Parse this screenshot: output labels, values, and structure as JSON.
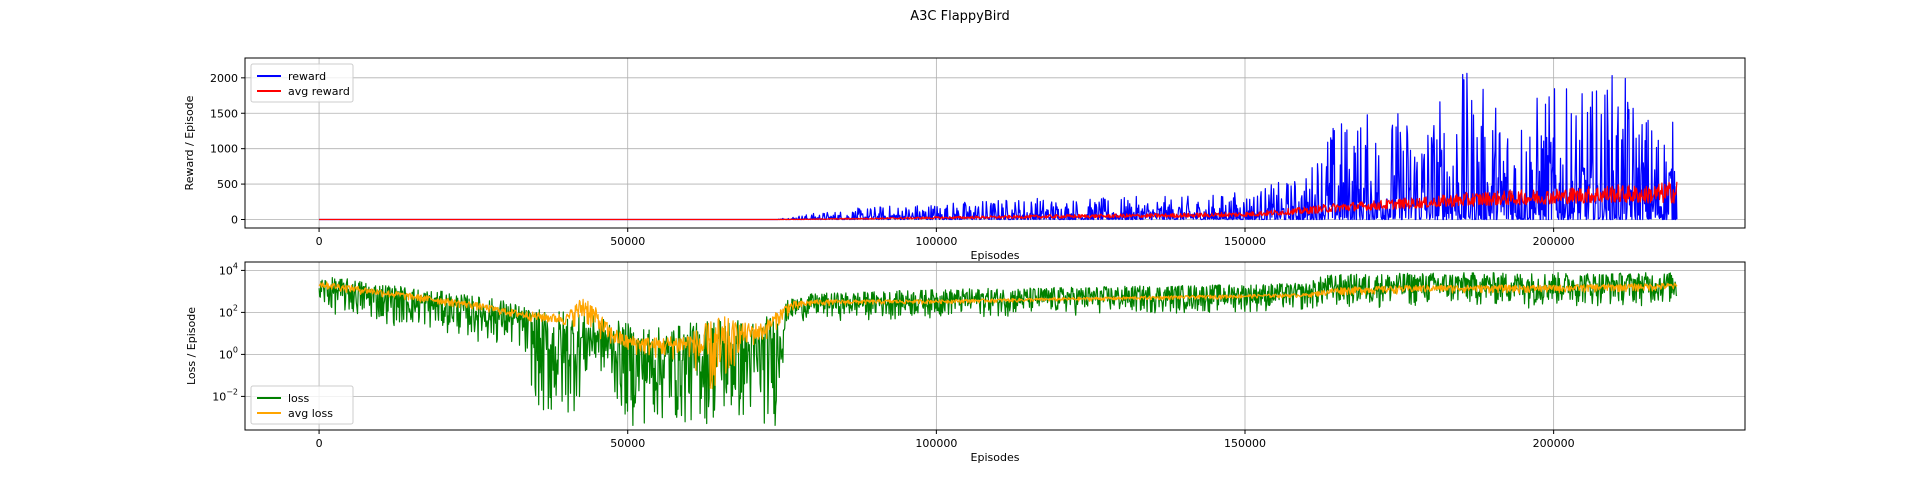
{
  "figure": {
    "title": "A3C FlappyBird"
  },
  "chart_data": [
    {
      "type": "line",
      "xlabel": "Episodes",
      "ylabel": "Reward / Episode",
      "xlim": [
        -12000,
        231000
      ],
      "ylim": [
        -120,
        2280
      ],
      "xticks": [
        0,
        50000,
        100000,
        150000,
        200000
      ],
      "yticks": [
        0,
        500,
        1000,
        1500,
        2000
      ],
      "yscale": "linear",
      "grid": true,
      "legend_location": "upper left",
      "series": [
        {
          "name": "reward",
          "color": "#0000ff",
          "x": [
            0,
            74000,
            76000,
            80000,
            85000,
            90000,
            95000,
            100000,
            105000,
            110000,
            115000,
            120000,
            125000,
            130000,
            135000,
            140000,
            145000,
            150000,
            155000,
            160000,
            163000,
            166000,
            170000,
            175000,
            180000,
            185000,
            190000,
            195000,
            200000,
            205000,
            210000,
            215000,
            220000
          ],
          "envelope_low": [
            0,
            0,
            0,
            0,
            0,
            0,
            0,
            0,
            0,
            0,
            0,
            0,
            0,
            0,
            0,
            0,
            0,
            0,
            0,
            0,
            0,
            0,
            0,
            0,
            0,
            0,
            0,
            0,
            0,
            0,
            0,
            0,
            0
          ],
          "envelope_high": [
            0,
            0,
            40,
            90,
            140,
            190,
            220,
            250,
            270,
            300,
            330,
            320,
            300,
            320,
            330,
            330,
            360,
            420,
            520,
            650,
            1350,
            1500,
            1550,
            1600,
            1650,
            2150,
            1800,
            1750,
            1900,
            1800,
            2180,
            1600,
            1400
          ]
        },
        {
          "name": "avg reward",
          "color": "#ff0000",
          "x": [
            0,
            74000,
            80000,
            90000,
            100000,
            110000,
            120000,
            130000,
            140000,
            150000,
            155000,
            160000,
            165000,
            170000,
            175000,
            180000,
            185000,
            190000,
            195000,
            200000,
            205000,
            210000,
            215000,
            220000
          ],
          "envelope_low": [
            0,
            0,
            0,
            5,
            10,
            15,
            20,
            25,
            30,
            40,
            60,
            80,
            110,
            130,
            150,
            170,
            180,
            200,
            210,
            220,
            230,
            240,
            230,
            230
          ],
          "envelope_high": [
            0,
            0,
            10,
            25,
            40,
            55,
            70,
            80,
            90,
            110,
            140,
            180,
            240,
            260,
            300,
            320,
            380,
            400,
            420,
            440,
            470,
            500,
            480,
            560
          ]
        }
      ]
    },
    {
      "type": "line",
      "xlabel": "Episodes",
      "ylabel": "Loss / Episode",
      "xlim": [
        -12000,
        231000
      ],
      "ylim_log10": [
        -3.6,
        4.4
      ],
      "xticks": [
        0,
        50000,
        100000,
        150000,
        200000
      ],
      "yticks_log10": [
        -2,
        0,
        2,
        4
      ],
      "ytick_base": "10",
      "yscale": "log",
      "grid": true,
      "legend_location": "lower left",
      "series": [
        {
          "name": "loss",
          "color": "#008000",
          "x": [
            0,
            5000,
            10000,
            15000,
            20000,
            25000,
            30000,
            33000,
            36000,
            40000,
            45000,
            50000,
            55000,
            60000,
            65000,
            70000,
            74000,
            76000,
            80000,
            90000,
            100000,
            120000,
            140000,
            160000,
            163000,
            180000,
            200000,
            220000
          ],
          "envelope_low_log10": [
            2.0,
            1.7,
            1.4,
            1.2,
            1.0,
            0.6,
            0.3,
            0.0,
            -3.6,
            -3.6,
            -0.8,
            -3.6,
            -3.6,
            -3.6,
            -3.6,
            -3.6,
            -3.6,
            1.5,
            1.6,
            1.6,
            1.7,
            1.8,
            1.9,
            2.0,
            2.1,
            2.2,
            2.2,
            2.3
          ],
          "envelope_high_log10": [
            3.7,
            3.6,
            3.4,
            3.2,
            3.0,
            2.8,
            2.6,
            2.3,
            2.1,
            2.2,
            1.8,
            1.5,
            1.3,
            1.5,
            1.9,
            1.6,
            2.0,
            2.6,
            2.9,
            3.0,
            3.1,
            3.2,
            3.3,
            3.4,
            3.8,
            3.9,
            3.9,
            3.9
          ]
        },
        {
          "name": "avg loss",
          "color": "#ffa500",
          "x": [
            0,
            5000,
            10000,
            15000,
            20000,
            25000,
            30000,
            35000,
            40000,
            43000,
            47000,
            50000,
            55000,
            60000,
            65000,
            68000,
            72000,
            76000,
            80000,
            100000,
            120000,
            140000,
            160000,
            165000,
            180000,
            200000,
            220000
          ],
          "envelope_low_log10": [
            3.1,
            2.9,
            2.7,
            2.5,
            2.3,
            2.1,
            1.8,
            1.5,
            1.3,
            1.3,
            0.3,
            0.0,
            -0.3,
            -0.3,
            -3.2,
            0.0,
            0.5,
            1.8,
            2.3,
            2.4,
            2.5,
            2.6,
            2.7,
            2.8,
            2.9,
            2.9,
            3.0
          ],
          "envelope_high_log10": [
            3.5,
            3.3,
            3.1,
            2.9,
            2.7,
            2.5,
            2.2,
            2.0,
            1.9,
            2.9,
            1.4,
            0.9,
            0.8,
            1.0,
            1.9,
            1.5,
            1.5,
            2.5,
            2.6,
            2.6,
            2.7,
            2.8,
            2.9,
            3.2,
            3.3,
            3.3,
            3.4
          ]
        }
      ]
    }
  ]
}
